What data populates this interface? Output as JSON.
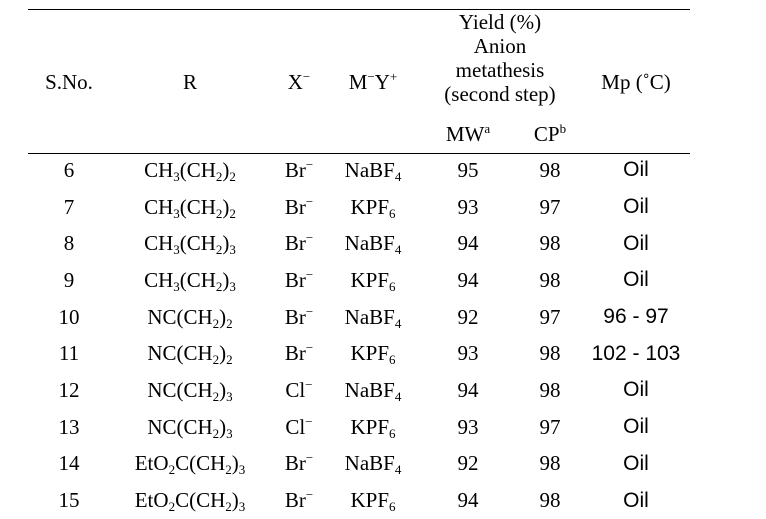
{
  "table": {
    "headers": {
      "sno": "S.No.",
      "r": "R",
      "x": "X",
      "x_sup": "−",
      "my_m": "M",
      "my_minus": "−",
      "my_y": "Y",
      "my_plus": "+",
      "yield_line1": "Yield (%)",
      "yield_line2": "Anion",
      "yield_line3": "metathesis",
      "yield_line4": "(second step)",
      "mw": "MW",
      "mw_sup": "a",
      "cp": "CP",
      "cp_sup": "b",
      "mp": "Mp (˚C)"
    },
    "rows": [
      {
        "sno": "6",
        "r_a": "CH",
        "r_a_sub": "3",
        "r_b": "(CH",
        "r_b_sub": "2",
        "r_c": ")",
        "r_c_sub": "2",
        "x": "Br",
        "x_sup": "−",
        "salt": "NaBF",
        "salt_sub": "4",
        "mw": "95",
        "cp": "98",
        "mp": "Oil"
      },
      {
        "sno": "7",
        "r_a": "CH",
        "r_a_sub": "3",
        "r_b": "(CH",
        "r_b_sub": "2",
        "r_c": ")",
        "r_c_sub": "2",
        "x": "Br",
        "x_sup": "−",
        "salt": "KPF",
        "salt_sub": "6",
        "mw": "93",
        "cp": "97",
        "mp": "Oil"
      },
      {
        "sno": "8",
        "r_a": "CH",
        "r_a_sub": "3",
        "r_b": "(CH",
        "r_b_sub": "2",
        "r_c": ")",
        "r_c_sub": "3",
        "x": "Br",
        "x_sup": "−",
        "salt": "NaBF",
        "salt_sub": "4",
        "mw": "94",
        "cp": "98",
        "mp": "Oil"
      },
      {
        "sno": "9",
        "r_a": "CH",
        "r_a_sub": "3",
        "r_b": "(CH",
        "r_b_sub": "2",
        "r_c": ")",
        "r_c_sub": "3",
        "x": "Br",
        "x_sup": "−",
        "salt": "KPF",
        "salt_sub": "6",
        "mw": "94",
        "cp": "98",
        "mp": "Oil"
      },
      {
        "sno": "10",
        "r_a": "NC",
        "r_a_sub": "",
        "r_b": "(CH",
        "r_b_sub": "2",
        "r_c": ")",
        "r_c_sub": "2",
        "x": "Br",
        "x_sup": "−",
        "salt": "NaBF",
        "salt_sub": "4",
        "mw": "92",
        "cp": "97",
        "mp": "96 - 97"
      },
      {
        "sno": "11",
        "r_a": "NC",
        "r_a_sub": "",
        "r_b": "(CH",
        "r_b_sub": "2",
        "r_c": ")",
        "r_c_sub": "2",
        "x": "Br",
        "x_sup": "−",
        "salt": "KPF",
        "salt_sub": "6",
        "mw": "93",
        "cp": "98",
        "mp": "102 - 103"
      },
      {
        "sno": "12",
        "r_a": "NC",
        "r_a_sub": "",
        "r_b": "(CH",
        "r_b_sub": "2",
        "r_c": ")",
        "r_c_sub": "3",
        "x": "Cl",
        "x_sup": "−",
        "salt": "NaBF",
        "salt_sub": "4",
        "mw": "94",
        "cp": "98",
        "mp": "Oil"
      },
      {
        "sno": "13",
        "r_a": "NC",
        "r_a_sub": "",
        "r_b": "(CH",
        "r_b_sub": "2",
        "r_c": ")",
        "r_c_sub": "3",
        "x": "Cl",
        "x_sup": "−",
        "salt": "KPF",
        "salt_sub": "6",
        "mw": "93",
        "cp": "97",
        "mp": "Oil"
      },
      {
        "sno": "14",
        "r_a": "EtO",
        "r_a_sub": "2",
        "r_b": "C(CH",
        "r_b_sub": "2",
        "r_c": ")",
        "r_c_sub": "3",
        "x": "Br",
        "x_sup": "−",
        "salt": "NaBF",
        "salt_sub": "4",
        "mw": "92",
        "cp": "98",
        "mp": "Oil"
      },
      {
        "sno": "15",
        "r_a": "EtO",
        "r_a_sub": "2",
        "r_b": "C(CH",
        "r_b_sub": "2",
        "r_c": ")",
        "r_c_sub": "3",
        "x": "Br",
        "x_sup": "−",
        "salt": "KPF",
        "salt_sub": "6",
        "mw": "94",
        "cp": "98",
        "mp": "Oil"
      }
    ]
  }
}
